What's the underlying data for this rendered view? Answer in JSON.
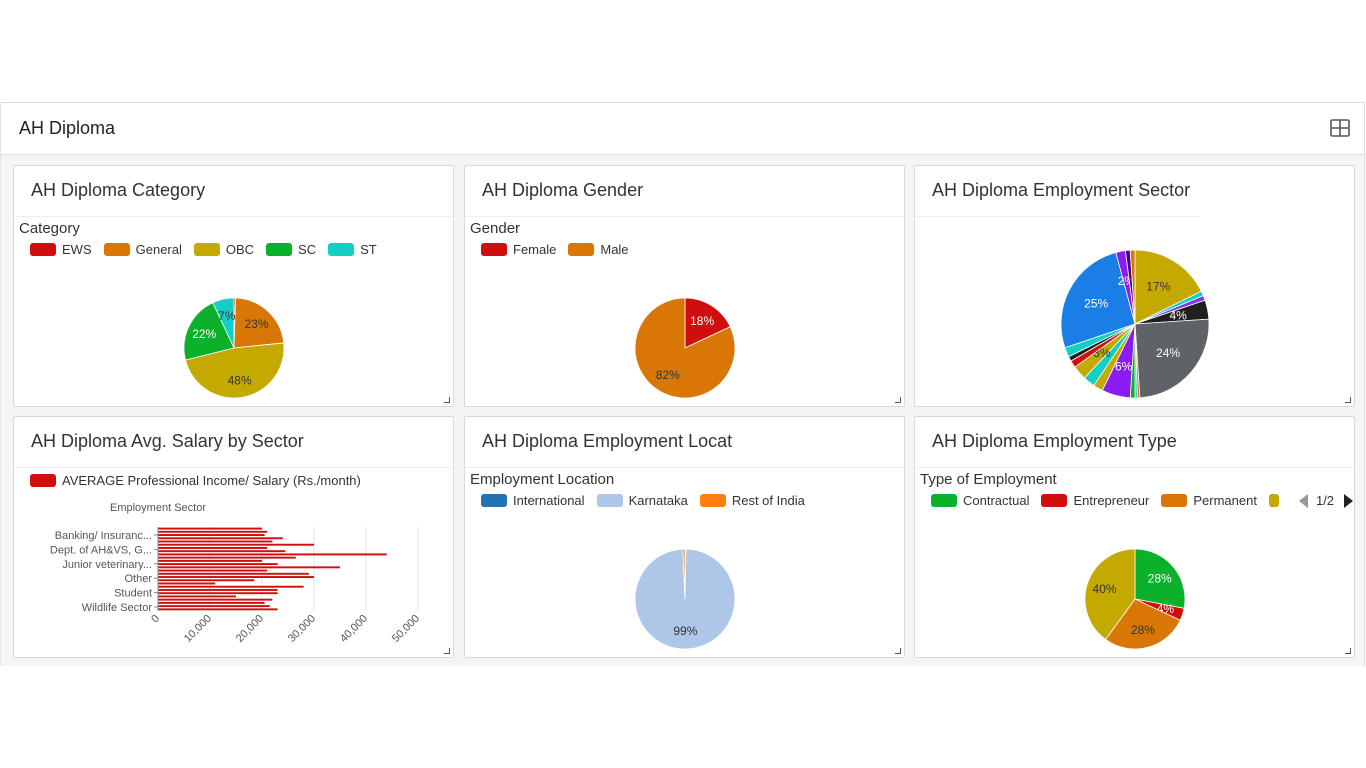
{
  "dashboard": {
    "title": "AH Diploma",
    "layout_icon": "grid-layout-icon"
  },
  "cards": {
    "category": {
      "title": "AH Diploma Category",
      "legend_title": "Category"
    },
    "gender": {
      "title": "AH Diploma Gender",
      "legend_title": "Gender"
    },
    "sector": {
      "title": "AH Diploma Employment Sector"
    },
    "salary": {
      "title": "AH Diploma Avg. Salary by Sector"
    },
    "location": {
      "title": "AH Diploma Employment Locat",
      "legend_title": "Employment Location"
    },
    "type": {
      "title": "AH Diploma Employment Type",
      "legend_title": "Type of Employment",
      "pager": "1/2"
    }
  },
  "chart_data": [
    {
      "id": "category",
      "type": "pie",
      "labels": [
        "EWS",
        "General",
        "OBC",
        "SC",
        "ST"
      ],
      "values": [
        0.5,
        23,
        48,
        22,
        7
      ],
      "colors": [
        "#d10e0e",
        "#d97706",
        "#c4aa00",
        "#0cb12b",
        "#14cfc3"
      ],
      "slice_labels": [
        "",
        "23%",
        "48%",
        "22%",
        "7%"
      ]
    },
    {
      "id": "gender",
      "type": "pie",
      "labels": [
        "Female",
        "Male"
      ],
      "values": [
        18,
        82
      ],
      "colors": [
        "#d10e0e",
        "#d97706"
      ],
      "slice_labels": [
        "18%",
        "82%"
      ]
    },
    {
      "id": "sector",
      "type": "pie",
      "values": [
        17,
        1,
        1,
        4,
        24,
        0.5,
        0.5,
        1,
        6,
        2,
        2.5,
        3,
        1.5,
        1,
        2,
        25,
        2,
        1,
        1
      ],
      "colors": [
        "#c4aa00",
        "#14cfc3",
        "#7c3aed",
        "#1f1f1f",
        "#5f6368",
        "#d97706",
        "#14cfc3",
        "#0cb12b",
        "#8b1cf0",
        "#c4aa00",
        "#14cfc3",
        "#c4aa00",
        "#d10e0e",
        "#1f1f1f",
        "#14cfc3",
        "#1a7ee6",
        "#8b1cf0",
        "#4b0082",
        "#d97706"
      ],
      "slice_labels": [
        "17%",
        "",
        "",
        "4%",
        "24%",
        "",
        "",
        "",
        "6%",
        "",
        "",
        "3%",
        "",
        "",
        "",
        "25%",
        "2%",
        "",
        ""
      ]
    },
    {
      "id": "salary",
      "type": "bar",
      "orientation": "horizontal",
      "series_name": "AVERAGE Professional Income/ Salary (Rs./month)",
      "ylabel": "Employment Sector",
      "tick_labels": [
        "Banking/ Insuranc...",
        "Dept. of AH&VS, G...",
        "Junior veterinary...",
        "Other",
        "Student",
        "Wildlife Sector"
      ],
      "values": [
        20000,
        21000,
        20500,
        24000,
        22000,
        30000,
        21000,
        24500,
        44000,
        26500,
        20000,
        23000,
        35000,
        21000,
        29000,
        30000,
        18500,
        11000,
        28000,
        23000,
        23000,
        15000,
        22000,
        20500,
        21500,
        23000
      ],
      "xlim": [
        0,
        50000
      ],
      "xticks": [
        "0",
        "10,000",
        "20,000",
        "30,000",
        "40,000",
        "50,000"
      ],
      "color": "#d10e0e"
    },
    {
      "id": "location",
      "type": "pie",
      "labels": [
        "International",
        "Karnataka",
        "Rest of India"
      ],
      "values": [
        0.3,
        99,
        0.7
      ],
      "colors": [
        "#2471b3",
        "#aec7e8",
        "#ff7f0e"
      ],
      "slice_labels": [
        "",
        "99%",
        ""
      ]
    },
    {
      "id": "type",
      "type": "pie",
      "labels": [
        "Contractual",
        "Entrepreneur",
        "Permanent",
        ""
      ],
      "values": [
        28,
        4,
        28,
        40
      ],
      "colors": [
        "#0cb12b",
        "#d10e0e",
        "#d97706",
        "#c4aa00"
      ],
      "slice_labels": [
        "28%",
        "4%",
        "28%",
        "40%"
      ]
    }
  ]
}
